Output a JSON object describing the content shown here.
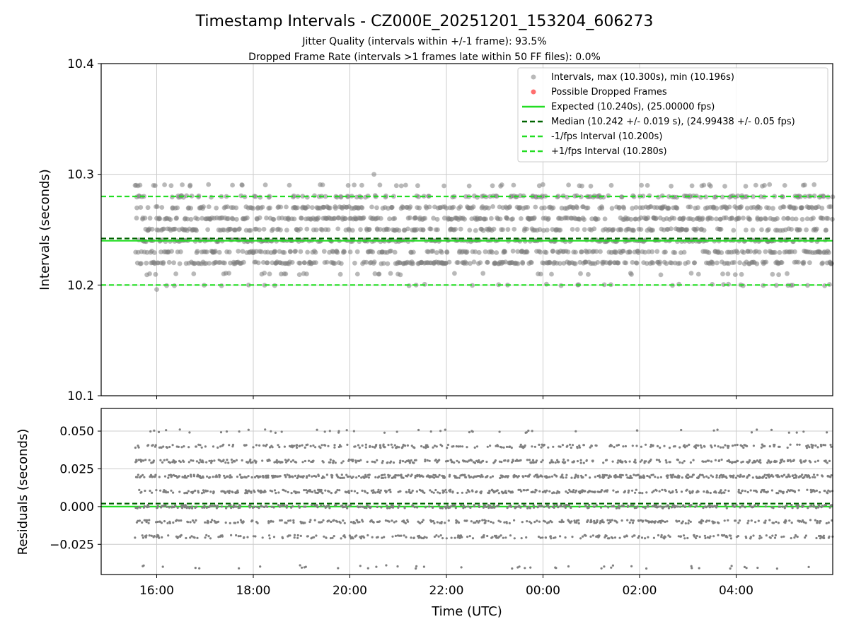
{
  "figure": {
    "title": "Timestamp Intervals - CZ000E_20251201_153204_606273",
    "subtitle_line1": "Jitter Quality (intervals within +/-1 frame): 93.5%",
    "subtitle_line2": "Dropped Frame Rate (intervals >1 frames late within 50 FF files): 0.0%"
  },
  "chart_data": [
    {
      "type": "scatter",
      "panel": "intervals",
      "title": "Timestamp Intervals - CZ000E_20251201_153204_606273",
      "ylabel": "Intervals (seconds)",
      "xlabel": "",
      "ylim": [
        10.1,
        10.4
      ],
      "xlim_hours": [
        14.85,
        30.0
      ],
      "x_start_hours": 15.55,
      "y_ticks": [
        10.1,
        10.2,
        10.3,
        10.4
      ],
      "y_tick_labels": [
        "10.1",
        "10.2",
        "10.3",
        "10.4"
      ],
      "x_ticks_hours": [
        16,
        18,
        20,
        22,
        24,
        26,
        28
      ],
      "grid": true,
      "legend_position": "upper-right",
      "intervals": {
        "max": 10.3,
        "min": 10.196,
        "quantized_levels": [
          10.2,
          10.21,
          10.22,
          10.23,
          10.24,
          10.25,
          10.26,
          10.27,
          10.28,
          10.29
        ],
        "level_weights": [
          1,
          2,
          10,
          9,
          9,
          9,
          10,
          9,
          6,
          2
        ],
        "approx_count": 5200
      },
      "dropped_frames": [],
      "series": [
        {
          "name": "Intervals, max (10.300s), min (10.196s)",
          "kind": "points",
          "color": "#808080"
        },
        {
          "name": "Possible Dropped Frames",
          "kind": "points",
          "color": "#ff5555"
        },
        {
          "name": "Expected (10.240s), (25.00000 fps)",
          "kind": "hline",
          "value": 10.24,
          "style": "solid",
          "color": "#22dd22"
        },
        {
          "name": "Median (10.242 +/- 0.019 s), (24.99438 +/- 0.05 fps)",
          "kind": "hline",
          "value": 10.242,
          "style": "dashed",
          "color": "#006400"
        },
        {
          "name": "-1/fps Interval (10.200s)",
          "kind": "hline",
          "value": 10.2,
          "style": "dashed",
          "color": "#22dd22"
        },
        {
          "name": "+1/fps Interval (10.280s)",
          "kind": "hline",
          "value": 10.28,
          "style": "dashed",
          "color": "#22dd22"
        }
      ]
    },
    {
      "type": "scatter",
      "panel": "residuals",
      "ylabel": "Residuals (seconds)",
      "xlabel": "Time (UTC)",
      "ylim": [
        -0.045,
        0.065
      ],
      "xlim_hours": [
        14.85,
        30.0
      ],
      "y_ticks": [
        -0.025,
        0.0,
        0.025,
        0.05
      ],
      "y_tick_labels": [
        "−0.025",
        "0.000",
        "0.025",
        "0.050"
      ],
      "x_ticks_hours": [
        16,
        18,
        20,
        22,
        24,
        26,
        28
      ],
      "x_tick_labels": [
        "16:00",
        "18:00",
        "20:00",
        "22:00",
        "00:00",
        "02:00",
        "04:00"
      ],
      "residual_levels": [
        -0.04,
        -0.02,
        -0.01,
        0.0,
        0.01,
        0.02,
        0.03,
        0.04,
        0.05
      ],
      "level_weights": [
        1,
        6,
        6,
        8,
        9,
        10,
        7,
        6,
        1
      ],
      "expected_line": 0.0,
      "median_line": 0.002,
      "grid": true
    }
  ],
  "colors": {
    "point": "#808080",
    "dropped": "#ff5555",
    "expected": "#22dd22",
    "median": "#006400",
    "grid": "#cccccc"
  }
}
